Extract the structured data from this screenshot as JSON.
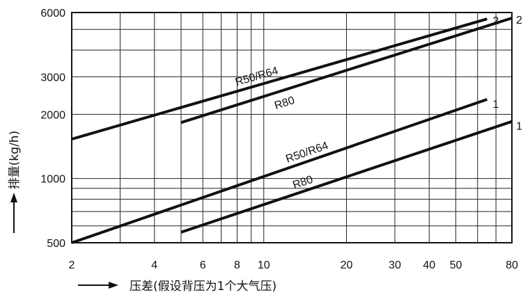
{
  "chart_data": {
    "type": "line",
    "title": "",
    "xlabel": "压差(假设背压为1个大气压)",
    "ylabel": "排量(kg/h)",
    "xscale": "log",
    "yscale": "log",
    "xlim": [
      2,
      80
    ],
    "ylim": [
      500,
      6000
    ],
    "x_ticks": [
      "2",
      "4",
      "6",
      "8",
      "10",
      "20",
      "30",
      "40",
      "50",
      "80"
    ],
    "y_ticks": [
      "500",
      "1000",
      "2000",
      "3000",
      "6000"
    ],
    "grid": true,
    "series": [
      {
        "name": "R50/R64",
        "group": "2",
        "x": [
          2,
          65
        ],
        "y": [
          1530,
          5600
        ]
      },
      {
        "name": "R80",
        "group": "2",
        "x": [
          5,
          80
        ],
        "y": [
          1830,
          5650
        ]
      },
      {
        "name": "R50/R64",
        "group": "1",
        "x": [
          2,
          65
        ],
        "y": [
          500,
          2350
        ]
      },
      {
        "name": "R80",
        "group": "1",
        "x": [
          5,
          80
        ],
        "y": [
          560,
          1850
        ]
      }
    ],
    "labels": [
      {
        "text": "R50/R64",
        "series": 0
      },
      {
        "text": "R80",
        "series": 1
      },
      {
        "text": "R50/R64",
        "series": 2
      },
      {
        "text": "R80",
        "series": 3
      },
      {
        "text": "2",
        "series": 0
      },
      {
        "text": "2",
        "series": 1
      },
      {
        "text": "1",
        "series": 2
      },
      {
        "text": "1",
        "series": 3
      }
    ]
  }
}
